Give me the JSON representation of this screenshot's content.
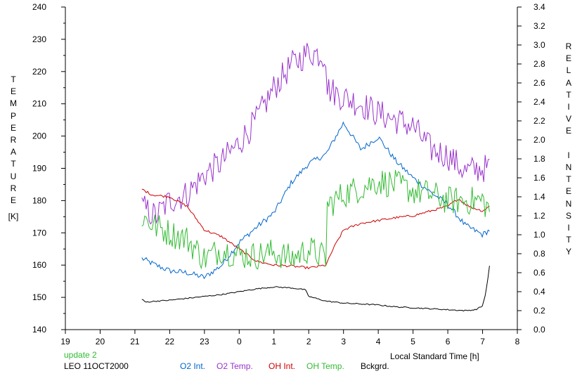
{
  "chart_data": {
    "type": "line",
    "xlabel": "Local Standard Time [h]",
    "ylabel_left": "TEMPERATURE",
    "ylabel_left_unit": "[K]",
    "ylabel_right": "RELATIVE INTENSITY",
    "x_ticks": [
      "19",
      "20",
      "21",
      "22",
      "23",
      "0",
      "1",
      "2",
      "3",
      "4",
      "5",
      "6",
      "7",
      "8"
    ],
    "xlim": [
      19,
      32
    ],
    "ylim_left": [
      140,
      240
    ],
    "ylim_right": [
      0.0,
      3.4
    ],
    "y_left_ticks": [
      140,
      150,
      160,
      170,
      180,
      190,
      200,
      210,
      220,
      230,
      240
    ],
    "y_right_ticks": [
      "0.0",
      "0.2",
      "0.4",
      "0.6",
      "0.8",
      "1.0",
      "1.2",
      "1.4",
      "1.6",
      "1.8",
      "2.0",
      "2.2",
      "2.4",
      "2.6",
      "2.8",
      "3.0",
      "3.2",
      "3.4"
    ],
    "grid": false,
    "notes": [
      "update 2",
      "LEO 11OCT2000"
    ],
    "legend": [
      {
        "label": "O2 Int.",
        "color": "#0066cc"
      },
      {
        "label": "O2 Temp.",
        "color": "#9933cc"
      },
      {
        "label": "OH Int.",
        "color": "#cc0000"
      },
      {
        "label": "OH Temp.",
        "color": "#33bb33"
      },
      {
        "label": "Bckgrd.",
        "color": "#000000"
      }
    ],
    "series": [
      {
        "name": "O2 Int.",
        "axis": "right",
        "color": "#0066cc",
        "noise": 0.03,
        "x": [
          21.2,
          21.6,
          22.0,
          22.5,
          23.0,
          23.5,
          24.0,
          24.5,
          25.0,
          25.5,
          26.0,
          26.5,
          27.0,
          27.5,
          28.0,
          28.5,
          29.0,
          29.5,
          30.0,
          30.5,
          31.0,
          31.2
        ],
        "y": [
          0.75,
          0.68,
          0.62,
          0.6,
          0.55,
          0.68,
          0.92,
          1.08,
          1.23,
          1.55,
          1.75,
          1.85,
          2.18,
          1.9,
          2.03,
          1.78,
          1.6,
          1.45,
          1.32,
          1.1,
          1.0,
          1.05
        ]
      },
      {
        "name": "O2 Temp.",
        "axis": "left",
        "color": "#9933cc",
        "noise": 4.5,
        "x": [
          21.2,
          21.6,
          22.0,
          22.5,
          23.0,
          23.5,
          24.0,
          24.5,
          25.0,
          25.5,
          26.0,
          26.5,
          26.5,
          27.0,
          27.5,
          28.0,
          28.5,
          29.0,
          29.5,
          30.0,
          30.5,
          31.0,
          31.2
        ],
        "y": [
          178,
          175,
          180,
          182,
          188,
          192,
          198,
          205,
          215,
          222,
          226,
          225,
          215,
          212,
          210,
          207,
          205,
          203,
          196,
          194,
          189,
          190,
          190
        ]
      },
      {
        "name": "OH Int.",
        "axis": "right",
        "color": "#cc0000",
        "noise": 0.012,
        "x": [
          21.2,
          21.5,
          22.0,
          22.5,
          23.0,
          23.5,
          24.0,
          24.5,
          25.0,
          25.5,
          26.0,
          26.5,
          26.7,
          27.0,
          27.5,
          28.0,
          28.5,
          29.0,
          29.5,
          30.0,
          30.3,
          30.6,
          31.0,
          31.2
        ],
        "y": [
          1.48,
          1.42,
          1.4,
          1.3,
          1.05,
          0.98,
          0.85,
          0.72,
          0.68,
          0.67,
          0.65,
          0.68,
          0.85,
          1.05,
          1.12,
          1.15,
          1.18,
          1.2,
          1.25,
          1.3,
          1.38,
          1.3,
          1.25,
          1.3
        ]
      },
      {
        "name": "OH Temp.",
        "axis": "left",
        "color": "#33bb33",
        "noise": 4.5,
        "x": [
          21.2,
          21.6,
          22.0,
          22.5,
          23.0,
          23.5,
          24.0,
          24.5,
          25.0,
          25.5,
          26.0,
          26.5,
          26.5,
          27.0,
          27.5,
          28.0,
          28.5,
          29.0,
          29.5,
          30.0,
          30.5,
          31.0,
          31.2
        ],
        "y": [
          175,
          172,
          170,
          168,
          162,
          165,
          163,
          163,
          164,
          162,
          165,
          162,
          178,
          182,
          184,
          186,
          185,
          183,
          182,
          180,
          180,
          180,
          177
        ]
      },
      {
        "name": "Bckgrd.",
        "axis": "right",
        "color": "#000000",
        "noise": 0.006,
        "x": [
          21.2,
          21.3,
          21.6,
          22.0,
          22.5,
          23.0,
          23.5,
          24.0,
          24.5,
          25.0,
          25.5,
          25.9,
          26.0,
          26.5,
          27.0,
          27.5,
          28.0,
          28.5,
          29.0,
          29.5,
          30.0,
          30.5,
          30.8,
          31.0,
          31.1,
          31.2
        ],
        "y": [
          0.32,
          0.29,
          0.3,
          0.31,
          0.33,
          0.35,
          0.37,
          0.4,
          0.43,
          0.45,
          0.44,
          0.42,
          0.35,
          0.3,
          0.28,
          0.27,
          0.26,
          0.24,
          0.23,
          0.22,
          0.21,
          0.2,
          0.21,
          0.25,
          0.4,
          0.67
        ]
      }
    ]
  }
}
